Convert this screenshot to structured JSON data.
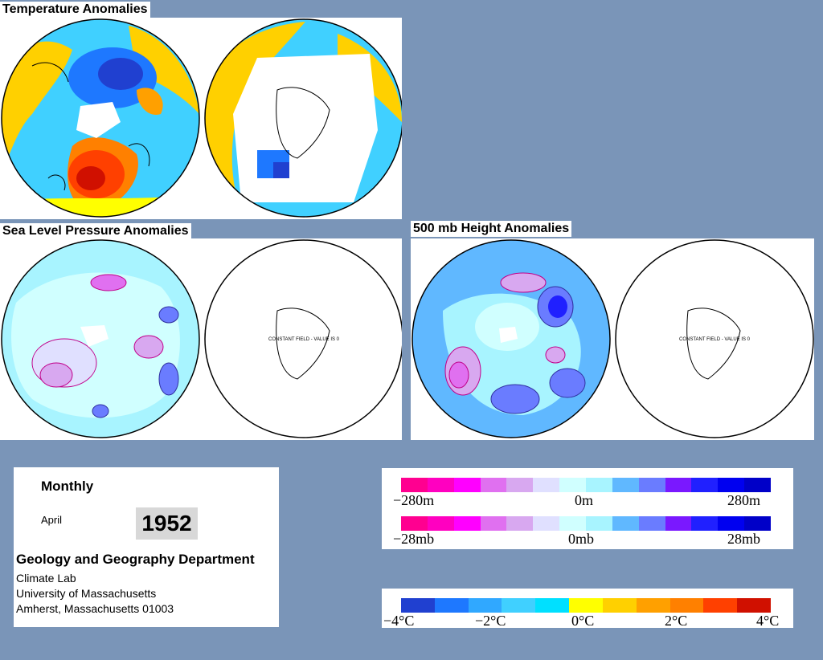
{
  "titles": {
    "temperature": "Temperature Anomalies",
    "slp": "Sea Level Pressure Anomalies",
    "height500": "500 mb Height Anomalies"
  },
  "map_notes": {
    "slp_southern": "CONSTANT FIELD - VALUE IS 0",
    "height_southern": "CONSTANT FIELD - VALUE IS 0"
  },
  "info": {
    "period": "Monthly",
    "month": "April",
    "year": "1952",
    "department": "Geology and Geography Department",
    "lab": "Climate Lab",
    "university": "University of Massachusetts",
    "address": "Amherst, Massachusetts 01003"
  },
  "height_scale": {
    "min": "−280m",
    "mid": "0m",
    "max": "280m"
  },
  "pressure_scale": {
    "min": "−28mb",
    "mid": "0mb",
    "max": "28mb"
  },
  "temp_scale": {
    "t1": "−4°C",
    "t2": "−2°C",
    "t3": "0°C",
    "t4": "2°C",
    "t5": "4°C"
  },
  "colors": {
    "anomaly_bins": [
      "#ff0090",
      "#ff00c0",
      "#ff00ff",
      "#e070f0",
      "#d8a8f0",
      "#e0e0ff",
      "#d0ffff",
      "#a8f4ff",
      "#60b8ff",
      "#6a7cff",
      "#7a18ff",
      "#2020ff",
      "#0000f0",
      "#0000c8"
    ],
    "temperature_bins": [
      "#2040d0",
      "#1e78ff",
      "#30a8ff",
      "#40d0ff",
      "#00e0ff",
      "#ffff00",
      "#ffd000",
      "#ffa000",
      "#ff8000",
      "#ff4000",
      "#d01000"
    ]
  }
}
